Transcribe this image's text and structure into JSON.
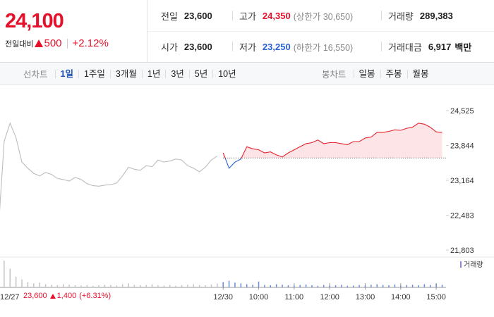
{
  "header": {
    "price": "24,100",
    "change_label": "전일대비",
    "change": "500",
    "change_rate": "+2.12%"
  },
  "stats": {
    "rows": [
      [
        {
          "label": "전일",
          "value": "23,600"
        },
        {
          "label": "고가",
          "value": "24,350",
          "note": "(상한가 30,650)"
        },
        {
          "label": "거래량",
          "value": "289,383"
        }
      ],
      [
        {
          "label": "시가",
          "value": "23,600"
        },
        {
          "label": "저가",
          "value": "23,250",
          "note": "(하한가 16,550)"
        },
        {
          "label": "거래대금",
          "value": "6,917",
          "unit": "백만"
        }
      ]
    ]
  },
  "tabs": {
    "line": {
      "label": "선차트",
      "items": [
        "1일",
        "1주일",
        "3개월",
        "1년",
        "3년",
        "5년",
        "10년"
      ],
      "active": 0
    },
    "candle": {
      "label": "봉차트",
      "items": [
        "일봉",
        "주봉",
        "월봉"
      ]
    }
  },
  "summary": {
    "close": "23,600",
    "change": "1,400",
    "rate": "(+6.31%)"
  },
  "chart_data": {
    "type": "line",
    "xlim": [
      -377,
      398
    ],
    "ylim": [
      21803,
      24525
    ],
    "xticks": [
      {
        "value": -390,
        "label": "12/27"
      },
      {
        "value": 0,
        "label": "12/30"
      },
      {
        "value": 60,
        "label": "10:00"
      },
      {
        "value": 120,
        "label": "11:00"
      },
      {
        "value": 180,
        "label": "12:00"
      },
      {
        "value": 240,
        "label": "13:00"
      },
      {
        "value": 300,
        "label": "14:00"
      },
      {
        "value": 360,
        "label": "15:00"
      }
    ],
    "yticks": [
      {
        "value": 24525,
        "label": "24,525"
      },
      {
        "value": 23844,
        "label": "23,844"
      },
      {
        "value": 23164,
        "label": "23,164"
      },
      {
        "value": 22483,
        "label": "22,483"
      },
      {
        "value": 21803,
        "label": "21,803"
      }
    ],
    "baseline": 23600,
    "area_color": "#fde4e6",
    "series": [
      {
        "color": "#bdbdbd",
        "x": [
          -380,
          -370,
          -360,
          -350,
          -340,
          -330,
          -320,
          -310,
          -300,
          -290,
          -280,
          -270,
          -260,
          -250,
          -240,
          -230,
          -220,
          -210,
          -200,
          -190,
          -180,
          -170,
          -160,
          -150,
          -140,
          -130,
          -120,
          -110,
          -100,
          -90,
          -80,
          -70,
          -60,
          -50,
          -40,
          -30,
          -20,
          -10
        ],
        "values": [
          22150,
          23930,
          24280,
          24000,
          23520,
          23400,
          23300,
          23250,
          23320,
          23280,
          23200,
          23180,
          23150,
          23220,
          23180,
          23100,
          23060,
          23050,
          23070,
          23080,
          23110,
          23250,
          23420,
          23380,
          23360,
          23450,
          23430,
          23560,
          23520,
          23540,
          23580,
          23560,
          23450,
          23400,
          23330,
          23420,
          23560,
          23640
        ]
      },
      {
        "color": "#e5222f",
        "down_color": "#2863d2",
        "x": [
          0,
          10,
          20,
          30,
          40,
          50,
          60,
          70,
          80,
          90,
          100,
          110,
          120,
          130,
          140,
          150,
          160,
          170,
          180,
          190,
          200,
          210,
          220,
          230,
          240,
          250,
          260,
          270,
          280,
          290,
          300,
          310,
          320,
          330,
          340,
          350,
          360,
          370
        ],
        "values": [
          23700,
          23400,
          23520,
          23580,
          23820,
          23780,
          23760,
          23700,
          23720,
          23660,
          23620,
          23700,
          23760,
          23820,
          23880,
          23900,
          23950,
          23880,
          23900,
          23900,
          23880,
          23860,
          23920,
          23920,
          23990,
          24010,
          24100,
          24100,
          24120,
          24150,
          24140,
          24180,
          24200,
          24280,
          24260,
          24200,
          24110,
          24100
        ]
      }
    ],
    "volume": {
      "label": "거래량",
      "color": "#8f84d4",
      "series": [
        {
          "color": "#c4c4c4",
          "values": [
            60,
            100,
            70,
            40,
            30,
            20,
            15,
            18,
            12,
            10,
            8,
            12,
            10,
            8,
            7,
            9,
            6,
            8,
            10,
            9,
            7,
            12,
            15,
            10,
            8,
            9,
            12,
            8,
            7,
            9,
            6,
            8,
            10,
            12,
            9,
            8,
            11,
            14
          ]
        },
        {
          "color": "#6d8ad6",
          "values": [
            20,
            25,
            18,
            15,
            12,
            10,
            22,
            9,
            8,
            12,
            10,
            8,
            7,
            9,
            11,
            8,
            6,
            9,
            7,
            8,
            10,
            6,
            7,
            9,
            8,
            10,
            12,
            9,
            8,
            11,
            7,
            9,
            10,
            8,
            12,
            9,
            14,
            10
          ]
        }
      ]
    }
  }
}
